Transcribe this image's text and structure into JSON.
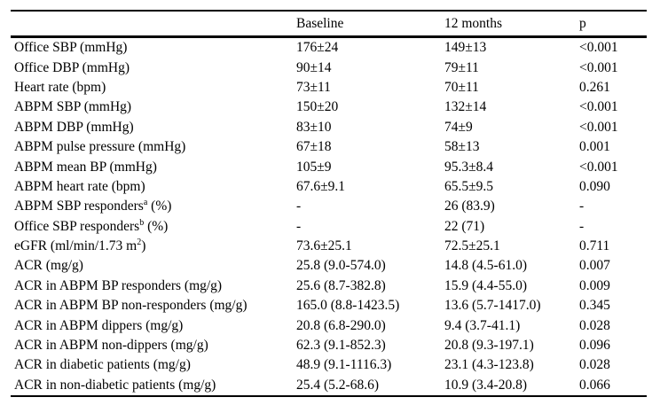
{
  "table": {
    "headers": [
      "",
      "Baseline",
      "12 months",
      "p"
    ],
    "rows": [
      {
        "label": [
          {
            "text": "Office SBP (mmHg)"
          }
        ],
        "baseline": "176±24",
        "twelve_months": "149±13",
        "p": "<0.001"
      },
      {
        "label": [
          {
            "text": "Office DBP (mmHg)"
          }
        ],
        "baseline": "90±14",
        "twelve_months": "79±11",
        "p": "<0.001"
      },
      {
        "label": [
          {
            "text": "Heart rate (bpm)"
          }
        ],
        "baseline": "73±11",
        "twelve_months": "70±11",
        "p": "0.261"
      },
      {
        "label": [
          {
            "text": "ABPM SBP (mmHg)"
          }
        ],
        "baseline": "150±20",
        "twelve_months": "132±14",
        "p": "<0.001"
      },
      {
        "label": [
          {
            "text": "ABPM DBP (mmHg)"
          }
        ],
        "baseline": "83±10",
        "twelve_months": "74±9",
        "p": "<0.001"
      },
      {
        "label": [
          {
            "text": "ABPM pulse pressure (mmHg)"
          }
        ],
        "baseline": "67±18",
        "twelve_months": "58±13",
        "p": "0.001"
      },
      {
        "label": [
          {
            "text": "ABPM mean BP (mmHg)"
          }
        ],
        "baseline": "105±9",
        "twelve_months": "95.3±8.4",
        "p": "<0.001"
      },
      {
        "label": [
          {
            "text": "ABPM heart rate (bpm)"
          }
        ],
        "baseline": "67.6±9.1",
        "twelve_months": "65.5±9.5",
        "p": "0.090"
      },
      {
        "label": [
          {
            "text": "ABPM SBP responders"
          },
          {
            "sup": "a"
          },
          {
            "text": " (%)"
          }
        ],
        "baseline": "-",
        "twelve_months": "26 (83.9)",
        "p": "-"
      },
      {
        "label": [
          {
            "text": "Office SBP responders"
          },
          {
            "sup": "b"
          },
          {
            "text": " (%)"
          }
        ],
        "baseline": "-",
        "twelve_months": "22 (71)",
        "p": "-"
      },
      {
        "label": [
          {
            "text": "eGFR (ml/min/1.73 m"
          },
          {
            "sup": "2"
          },
          {
            "text": ")"
          }
        ],
        "baseline": "73.6±25.1",
        "twelve_months": "72.5±25.1",
        "p": "0.711"
      },
      {
        "label": [
          {
            "text": "ACR (mg/g)"
          }
        ],
        "baseline": "25.8 (9.0-574.0)",
        "twelve_months": "14.8 (4.5-61.0)",
        "p": "0.007"
      },
      {
        "label": [
          {
            "text": "ACR in ABPM BP responders (mg/g)"
          }
        ],
        "baseline": "25.6 (8.7-382.8)",
        "twelve_months": "15.9 (4.4-55.0)",
        "p": "0.009"
      },
      {
        "label": [
          {
            "text": "ACR in ABPM BP non-responders (mg/g)"
          }
        ],
        "baseline": "165.0 (8.8-1423.5)",
        "twelve_months": "13.6 (5.7-1417.0)",
        "p": "0.345"
      },
      {
        "label": [
          {
            "text": "ACR in ABPM dippers (mg/g)"
          }
        ],
        "baseline": "20.8 (6.8-290.0)",
        "twelve_months": "9.4 (3.7-41.1)",
        "p": "0.028"
      },
      {
        "label": [
          {
            "text": "ACR in ABPM non-dippers (mg/g)"
          }
        ],
        "baseline": "62.3 (9.1-852.3)",
        "twelve_months": "20.8 (9.3-197.1)",
        "p": "0.096"
      },
      {
        "label": [
          {
            "text": "ACR in diabetic patients (mg/g)"
          }
        ],
        "baseline": "48.9 (9.1-1116.3)",
        "twelve_months": "23.1 (4.3-123.8)",
        "p": "0.028"
      },
      {
        "label": [
          {
            "text": "ACR in non-diabetic patients (mg/g)"
          }
        ],
        "baseline": "25.4 (5.2-68.6)",
        "twelve_months": "10.9 (3.4-20.8)",
        "p": "0.066"
      }
    ]
  },
  "colors": {
    "text": "#000000",
    "background": "#ffffff",
    "rule": "#000000"
  }
}
